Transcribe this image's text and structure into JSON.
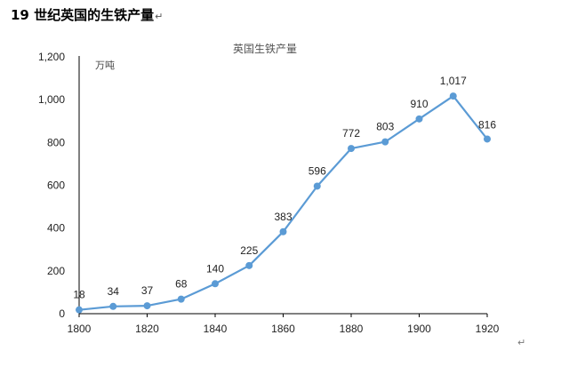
{
  "document": {
    "heading": "19 世纪英国的生铁产量",
    "paragraph_mark": "↵"
  },
  "chart_data": {
    "type": "line",
    "title": "英国生铁产量",
    "unit_label": "万吨",
    "xlabel": "",
    "ylabel": "",
    "x": [
      1800,
      1810,
      1820,
      1830,
      1840,
      1850,
      1860,
      1870,
      1880,
      1890,
      1900,
      1910,
      1920
    ],
    "series": [
      {
        "values": [
          18,
          34,
          37,
          68,
          140,
          225,
          383,
          596,
          772,
          803,
          910,
          1017,
          816
        ],
        "labels": [
          "18",
          "34",
          "37",
          "68",
          "140",
          "225",
          "383",
          "596",
          "772",
          "803",
          "910",
          "1,017",
          "816"
        ]
      }
    ],
    "xlim": [
      1800,
      1920
    ],
    "ylim": [
      0,
      1200
    ],
    "x_ticks": [
      1800,
      1820,
      1840,
      1860,
      1880,
      1900,
      1920
    ],
    "y_ticks": [
      0,
      200,
      400,
      600,
      800,
      1000,
      1200
    ],
    "y_tick_labels": [
      "0",
      "200",
      "400",
      "600",
      "800",
      "1,000",
      "1,200"
    ],
    "grid": false,
    "legend": "none",
    "colors": {
      "line": "#5b9bd5",
      "marker": "#5b9bd5",
      "axis": "#000000"
    }
  }
}
